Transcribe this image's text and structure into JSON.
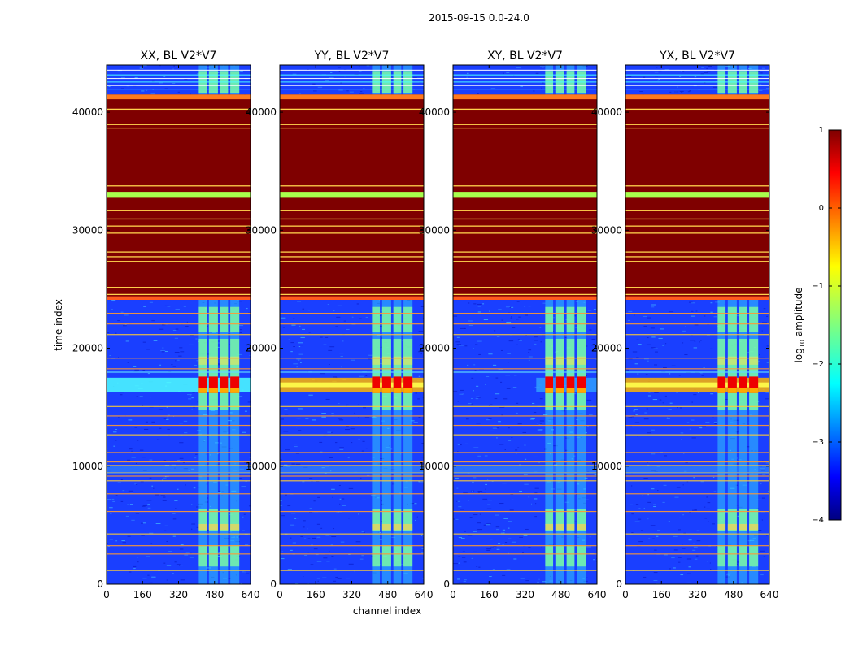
{
  "chart_data": {
    "type": "heatmap",
    "title": "2015-09-15 0.0-24.0",
    "xlabel": "channel index",
    "ylabel": "time index",
    "xlim": [
      0,
      640
    ],
    "ylim": [
      0,
      44000
    ],
    "x_ticks": [
      0,
      160,
      320,
      480,
      640
    ],
    "x_tick_labels": [
      "0",
      "160",
      "320",
      "480",
      "640"
    ],
    "y_ticks": [
      0,
      10000,
      20000,
      30000,
      40000
    ],
    "y_tick_labels": [
      "0",
      "10000",
      "20000",
      "30000",
      "40000"
    ],
    "panels": [
      {
        "name": "xx",
        "title": "XX, BL V2*V7",
        "cross_band_strength": "medium"
      },
      {
        "name": "yy",
        "title": "YY, BL V2*V7",
        "cross_band_strength": "strong"
      },
      {
        "name": "xy",
        "title": "XY, BL V2*V7",
        "cross_band_strength": "weak"
      },
      {
        "name": "yx",
        "title": "YX, BL V2*V7",
        "cross_band_strength": "strong"
      }
    ],
    "features": {
      "saturated_time_range": [
        24200,
        41500
      ],
      "green_band_time": 33000,
      "rfi_channel_range": [
        410,
        600
      ],
      "rfi_channel_blocks": [
        [
          410,
          445
        ],
        [
          455,
          495
        ],
        [
          505,
          540
        ],
        [
          550,
          590
        ]
      ],
      "strong_time_range": [
        16200,
        17600
      ]
    },
    "colorbar": {
      "label_prefix": "log",
      "label_subscript": "10",
      "label_suffix": " amplitude",
      "range": [
        -4,
        1
      ],
      "ticks": [
        1,
        0,
        -1,
        -2,
        -3,
        -4
      ],
      "tick_labels": [
        "1",
        "0",
        "−1",
        "−2",
        "−3",
        "−4"
      ],
      "colormap": "jet"
    }
  }
}
